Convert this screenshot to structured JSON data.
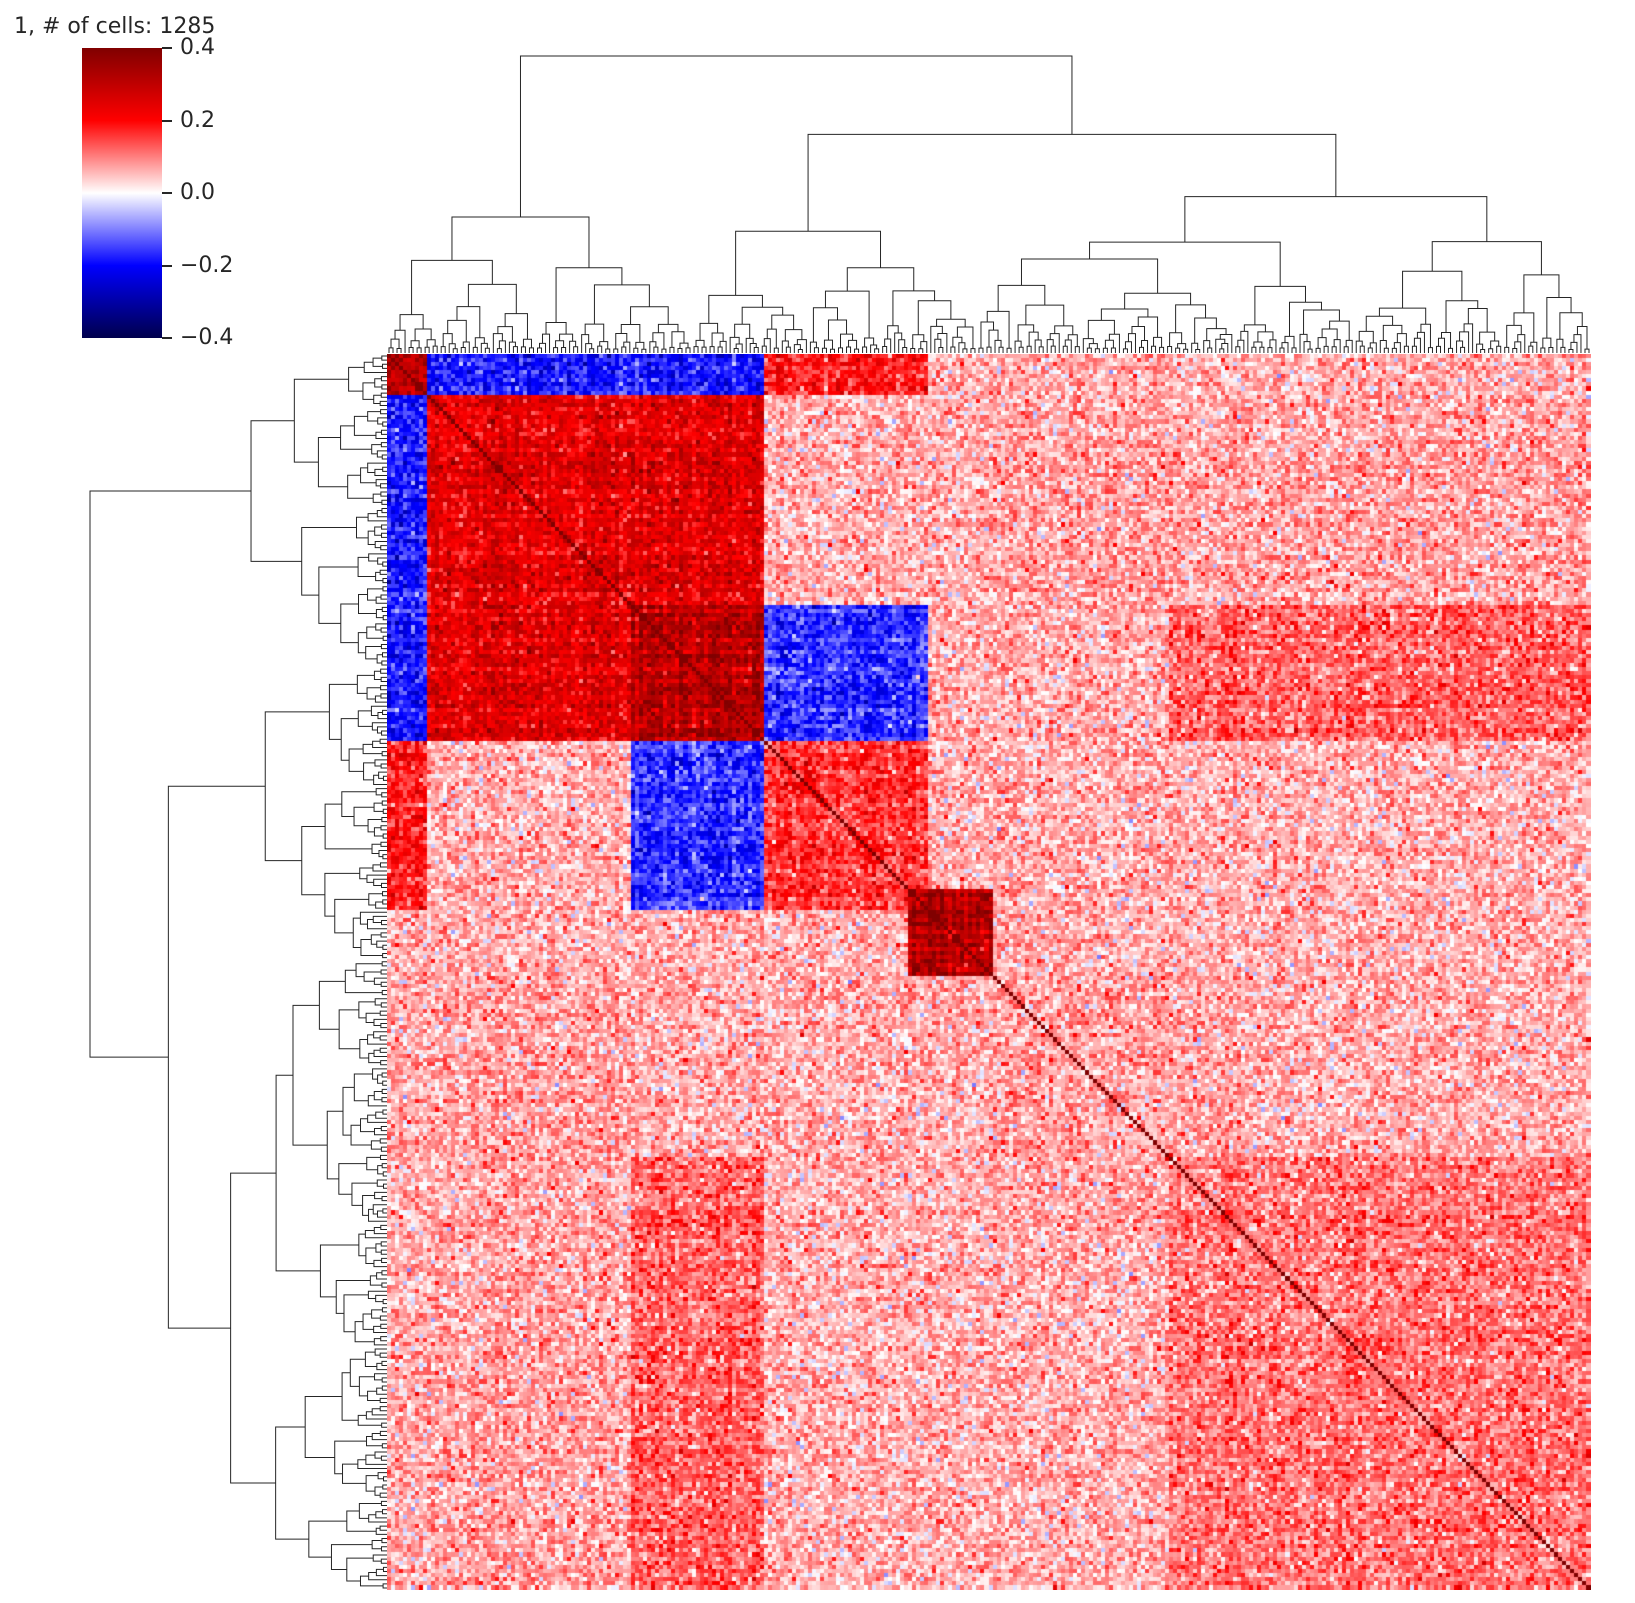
{
  "chart_data": {
    "type": "heatmap",
    "title": "1, # of cells: 1285",
    "subtitle": "",
    "xlabel": "",
    "ylabel": "",
    "colormap": "seismic",
    "colorbar": {
      "vmin": -0.4,
      "vmax": 0.4,
      "ticks": [
        0.4,
        0.2,
        0.0,
        -0.2,
        -0.4
      ],
      "tick_labels": [
        "0.4",
        "0.2",
        "0.0",
        "−0.2",
        "−0.4"
      ],
      "low_color": "#00004c",
      "mid_color": "#ffffff",
      "high_color": "#800000"
    },
    "matrix_size": 300,
    "diagonal_value": 0.4,
    "cluster_blocks": [
      {
        "start": 0.0,
        "end": 0.033,
        "value": 0.3
      },
      {
        "start": 0.033,
        "end": 0.313,
        "value": 0.24
      },
      {
        "start": 0.203,
        "end": 0.313,
        "value": 0.3
      },
      {
        "start": 0.313,
        "end": 0.45,
        "value": 0.16
      },
      {
        "start": 0.433,
        "end": 0.503,
        "value": 0.32
      },
      {
        "start": 0.503,
        "end": 0.713,
        "value": 0.07
      },
      {
        "start": 0.65,
        "end": 1.0,
        "value": 0.11
      }
    ],
    "cross_block_values": [
      {
        "a": [
          0.0,
          0.033
        ],
        "b": [
          0.033,
          0.313
        ],
        "value": -0.18
      },
      {
        "a": [
          0.203,
          0.313
        ],
        "b": [
          0.313,
          0.45
        ],
        "value": -0.16
      },
      {
        "a": [
          0.033,
          0.313
        ],
        "b": [
          0.65,
          1.0
        ],
        "value": 0.12
      },
      {
        "a": [
          0.0,
          0.033
        ],
        "b": [
          0.313,
          0.45
        ],
        "value": 0.18
      },
      {
        "a": [
          0.033,
          0.203
        ],
        "b": [
          0.503,
          1.0
        ],
        "value": 0.07
      }
    ],
    "row_dendrogram": true,
    "col_dendrogram": true,
    "tick_labels_shown": false
  }
}
